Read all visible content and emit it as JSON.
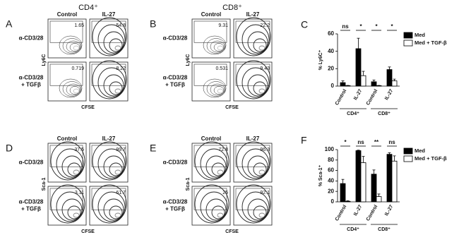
{
  "flow": [
    {
      "letter": "A",
      "header": "CD4⁺",
      "columns": [
        "Control",
        "IL-27"
      ],
      "rows": [
        [
          "α-CD3/28"
        ],
        [
          "α-CD3/28",
          "+ TGFβ"
        ]
      ],
      "ylabel": "Ly6C",
      "xlabel": "CFSE",
      "gates": [
        [
          1.65,
          54.8
        ],
        [
          0.719,
          8.22
        ]
      ]
    },
    {
      "letter": "B",
      "header": "CD8⁺",
      "columns": [
        "Control",
        "IL-27"
      ],
      "rows": [
        [
          "α-CD3/28"
        ],
        [
          "α-CD3/28",
          "+ TGFβ"
        ]
      ],
      "ylabel": "Ly6C",
      "xlabel": "CFSE",
      "gates": [
        [
          9.31,
          22.2
        ],
        [
          0.531,
          9.43
        ]
      ]
    },
    {
      "letter": "D",
      "columns": [
        "Control",
        "IL-27"
      ],
      "rows": [
        [
          "α-CD3/28"
        ],
        [
          "α-CD3/28",
          "+ TGFβ"
        ]
      ],
      "ylabel": "Sca-1",
      "xlabel": "CFSE",
      "gates": [
        [
          37.5,
          99.7
        ],
        [
          3.11,
          61.7
        ]
      ]
    },
    {
      "letter": "E",
      "columns": [
        "Control",
        "IL-27"
      ],
      "rows": [
        [
          "α-CD3/28"
        ],
        [
          "α-CD3/28",
          "+ TGFβ"
        ]
      ],
      "ylabel": "Sca-1",
      "xlabel": "CFSE",
      "gates": [
        [
          72.8,
          96.3
        ],
        [
          25,
          92.1
        ]
      ]
    }
  ],
  "chart_data": [
    {
      "type": "bar",
      "letter": "C",
      "ylabel": "% Ly6C⁺",
      "categories": [
        "Control",
        "IL-27",
        "Control",
        "IL-27"
      ],
      "groups": [
        "CD4⁺",
        "CD8⁺"
      ],
      "series": [
        {
          "name": "Med",
          "color": "#000000",
          "values": [
            4,
            43,
            5,
            19
          ],
          "errors": [
            2,
            12,
            2,
            3
          ]
        },
        {
          "name": "Med + TGF-β",
          "color": "#ffffff",
          "values": [
            0.5,
            12,
            0.5,
            6
          ],
          "errors": [
            0.3,
            5,
            0.3,
            2
          ]
        }
      ],
      "annotations": [
        "ns",
        "*",
        "*",
        "*"
      ],
      "ylim": [
        0,
        60
      ],
      "yticks": [
        0,
        20,
        40,
        60
      ],
      "legend": "upper right"
    },
    {
      "type": "bar",
      "letter": "F",
      "ylabel": "% Sca-1⁺",
      "categories": [
        "Control",
        "IL-27",
        "Control",
        "IL-27"
      ],
      "groups": [
        "CD4⁺",
        "CD8⁺"
      ],
      "series": [
        {
          "name": "Med",
          "color": "#000000",
          "values": [
            35,
            98,
            53,
            91
          ],
          "errors": [
            8,
            1,
            8,
            3
          ]
        },
        {
          "name": "Med + TGF-β",
          "color": "#ffffff",
          "values": [
            1,
            75,
            10,
            78
          ],
          "errors": [
            1,
            12,
            5,
            10
          ]
        }
      ],
      "annotations": [
        "*",
        "ns",
        "**",
        "ns"
      ],
      "ylim": [
        0,
        100
      ],
      "yticks": [
        0,
        20,
        40,
        60,
        80,
        100
      ],
      "legend": "upper right"
    }
  ]
}
